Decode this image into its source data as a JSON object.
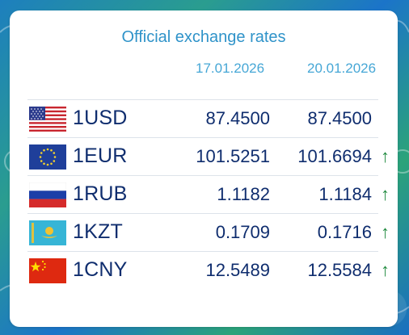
{
  "title": "Official exchange rates",
  "dates": [
    "17.01.2026",
    "20.01.2026"
  ],
  "rows": [
    {
      "code": "1USD",
      "flag_icon": "us-flag-icon",
      "rate_1": "87.4500",
      "rate_2": "87.4500",
      "arrow": ""
    },
    {
      "code": "1EUR",
      "flag_icon": "eu-flag-icon",
      "rate_1": "101.5251",
      "rate_2": "101.6694",
      "arrow": "↑"
    },
    {
      "code": "1RUB",
      "flag_icon": "ru-flag-icon",
      "rate_1": "1.1182",
      "rate_2": "1.1184",
      "arrow": "↑"
    },
    {
      "code": "1KZT",
      "flag_icon": "kz-flag-icon",
      "rate_1": "0.1709",
      "rate_2": "0.1716",
      "arrow": "↑"
    },
    {
      "code": "1CNY",
      "flag_icon": "cn-flag-icon",
      "rate_1": "12.5489",
      "rate_2": "12.5584",
      "arrow": "↑"
    }
  ],
  "colors": {
    "title": "#2f93c9",
    "date": "#46a7d6",
    "text": "#0f2d6e",
    "arrow_up": "#1f8a3e"
  }
}
